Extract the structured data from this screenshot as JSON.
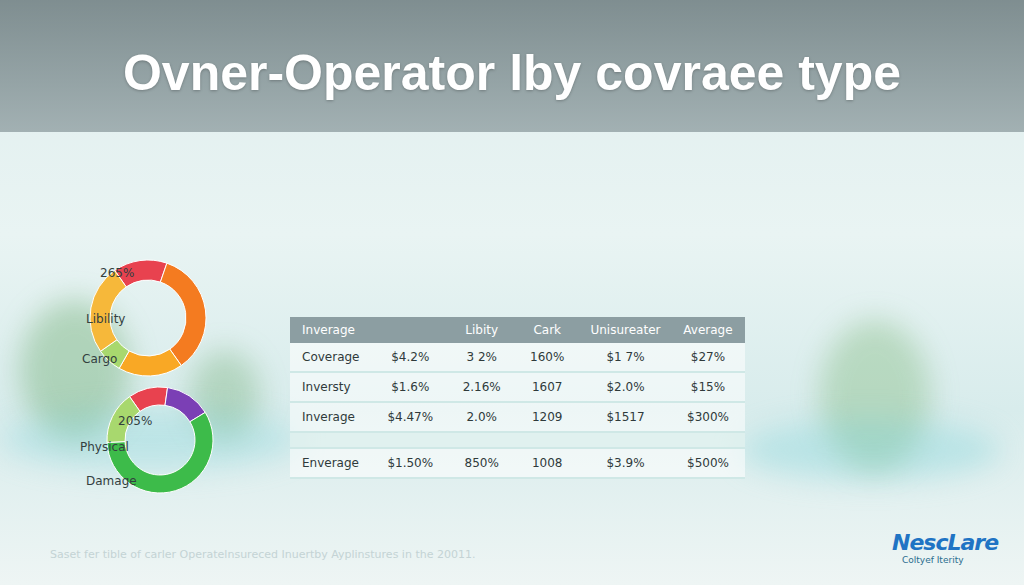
{
  "title": "Ovner-Operator lby covraee type",
  "chart_data": [
    {
      "type": "donut",
      "annotations": [
        "265%",
        "Libility",
        "Cargo"
      ],
      "values": [
        15,
        35,
        18,
        7,
        25
      ],
      "colors": [
        "#e8424f",
        "#f47b20",
        "#f9a825",
        "#a8d86e",
        "#f6b83a"
      ]
    },
    {
      "type": "donut",
      "annotations": [
        "205%",
        "Physical",
        "Damage"
      ],
      "values": [
        12,
        14,
        58,
        16
      ],
      "colors": [
        "#e8424f",
        "#7b3fb5",
        "#3dbb4a",
        "#a8d86e"
      ]
    }
  ],
  "table": {
    "header": [
      "Inverage",
      null,
      "Libity",
      "Cark",
      "Unisureater",
      "Average"
    ],
    "rows": [
      [
        "Coverage",
        "$4.2%",
        "3 2%",
        "160%",
        "$1 7%",
        "$27%"
      ],
      [
        "Inversty",
        "$1.6%",
        "2.16%",
        "1607",
        "$2.0%",
        "$15%"
      ],
      [
        "Inverage",
        "$4.47%",
        "2.0%",
        "1209",
        "$1517",
        "$300%"
      ],
      [
        "Enverage",
        "$1.50%",
        "850%",
        "1008",
        "$3.9%",
        "$500%"
      ]
    ]
  },
  "footer": "Saset fer tible of carler Operatelnsureced Inuertby Ayplinstures in the 20011.",
  "logo": {
    "name": "NescLare",
    "tagline": "Coltyef Iterity"
  }
}
